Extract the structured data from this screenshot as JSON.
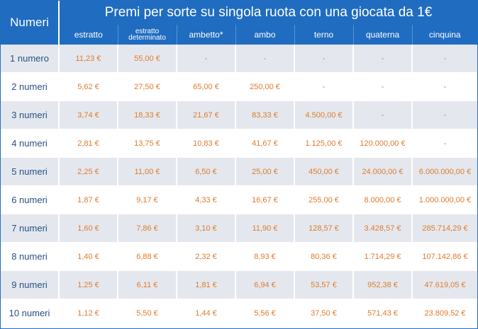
{
  "header": {
    "corner_label": "Numeri",
    "title": "Premi per sorte su singola ruota con una giocata da 1€",
    "columns": [
      "estratto",
      "estratto determinato",
      "ambetto*",
      "ambo",
      "terno",
      "quaterna",
      "cinquina"
    ]
  },
  "rows": [
    {
      "label": "1 numero",
      "values": [
        "11,23 €",
        "55,00 €",
        "-",
        "-",
        "-",
        "-",
        "-"
      ]
    },
    {
      "label": "2 numeri",
      "values": [
        "5,62 €",
        "27,50 €",
        "65,00 €",
        "250,00 €",
        "-",
        "-",
        "-"
      ]
    },
    {
      "label": "3 numeri",
      "values": [
        "3,74 €",
        "18,33 €",
        "21,67 €",
        "83,33 €",
        "4.500,00 €",
        "-",
        "-"
      ]
    },
    {
      "label": "4 numeri",
      "values": [
        "2,81 €",
        "13,75 €",
        "10,83 €",
        "41,67 €",
        "1.125,00 €",
        "120.000,00 €",
        "-"
      ]
    },
    {
      "label": "5 numeri",
      "values": [
        "2,25 €",
        "11,00 €",
        "6,50 €",
        "25,00 €",
        "450,00 €",
        "24.000,00 €",
        "6.000.000,00 €"
      ]
    },
    {
      "label": "6 numeri",
      "values": [
        "1,87 €",
        "9,17 €",
        "4,33 €",
        "16,67 €",
        "255,00 €",
        "8.000,00 €",
        "1.000.000,00 €"
      ]
    },
    {
      "label": "7 numeri",
      "values": [
        "1,60 €",
        "7,86 €",
        "3,10 €",
        "11,90 €",
        "128,57 €",
        "3.428,57 €",
        "285.714,29 €"
      ]
    },
    {
      "label": "8 numeri",
      "values": [
        "1,40 €",
        "6,88 €",
        "2,32 €",
        "8,93 €",
        "80,36 €",
        "1.714,29 €",
        "107.142,86 €"
      ]
    },
    {
      "label": "9 numeri",
      "values": [
        "1,25 €",
        "6,11 €",
        "1,81 €",
        "6,94 €",
        "53,57 €",
        "952,38 €",
        "47.619,05 €"
      ]
    },
    {
      "label": "10 numeri",
      "values": [
        "1,12 €",
        "5,50 €",
        "1,44 €",
        "5,56 €",
        "37,50 €",
        "571,43 €",
        "23.809,52 €"
      ]
    }
  ],
  "colors": {
    "header_bg": "#1f6cc0",
    "row_shade": "#e4e8ee",
    "value_text": "#e07a2c",
    "label_text": "#2a4f86"
  }
}
